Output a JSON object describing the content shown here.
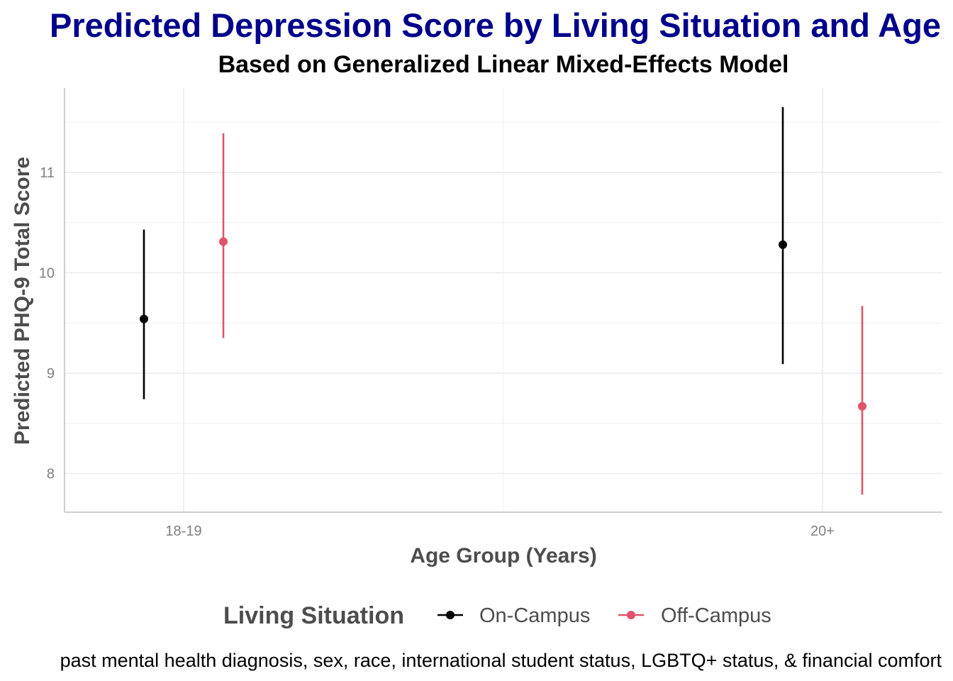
{
  "chart_data": {
    "type": "errorbar",
    "title": "Predicted Depression Score by Living Situation and Age",
    "subtitle": "Based on Generalized Linear Mixed-Effects Model",
    "xlabel": "Age Group (Years)",
    "ylabel": "Predicted PHQ-9 Total Score",
    "categories": [
      "18-19",
      "20+"
    ],
    "ylim": [
      7.6,
      11.85
    ],
    "yticks": [
      8,
      9,
      10,
      11
    ],
    "grid": true,
    "legend": {
      "title": "Living Situation",
      "position": "bottom"
    },
    "series": [
      {
        "name": "On-Campus",
        "color": "#000000",
        "values": [
          9.54,
          10.28
        ],
        "lower": [
          8.74,
          9.09
        ],
        "upper": [
          10.43,
          11.65
        ]
      },
      {
        "name": "Off-Campus",
        "color": "#DF536B",
        "values": [
          10.31,
          8.67
        ],
        "lower": [
          9.35,
          7.79
        ],
        "upper": [
          11.39,
          9.67
        ]
      }
    ],
    "caption": "past mental health diagnosis, sex, race, international student status, LGBTQ+ status, & financial comfort",
    "title_color": "#00008B"
  }
}
